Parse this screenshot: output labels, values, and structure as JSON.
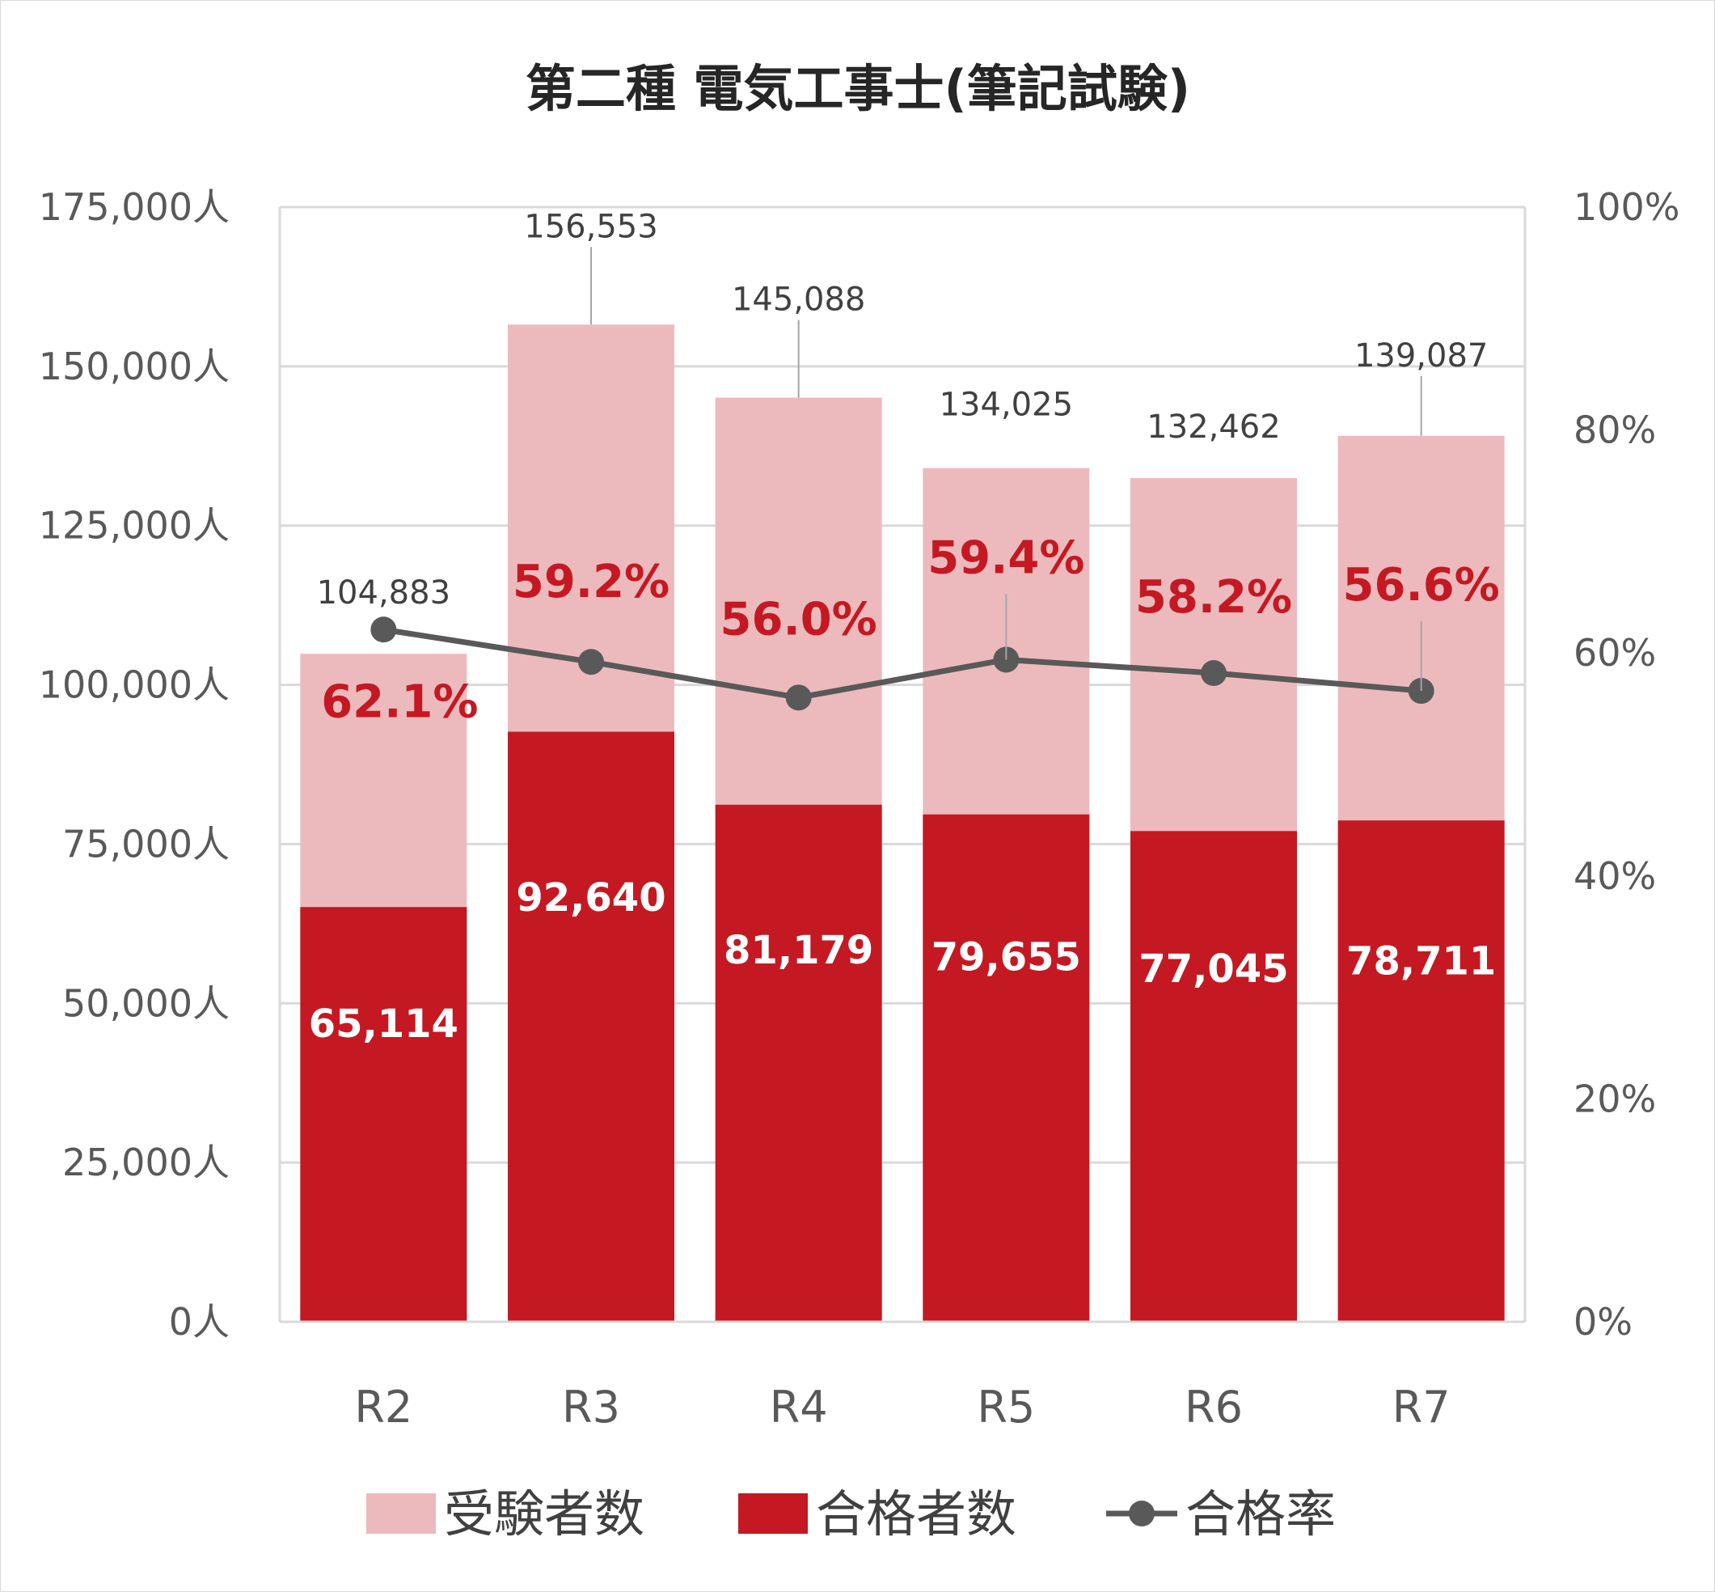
{
  "chart_data": {
    "type": "bar",
    "title": "第二種 電気工事士(筆記試験)",
    "categories": [
      "R2",
      "R3",
      "R4",
      "R5",
      "R6",
      "R7"
    ],
    "series": [
      {
        "name": "受験者数",
        "kind": "bar",
        "values": [
          104883,
          156553,
          145088,
          134025,
          132462,
          139087
        ],
        "labels": [
          "104,883",
          "156,553",
          "145,088",
          "134,025",
          "132,462",
          "139,087"
        ],
        "color": "#ecbabd"
      },
      {
        "name": "合格者数",
        "kind": "bar",
        "values": [
          65114,
          92640,
          81179,
          79655,
          77045,
          78711
        ],
        "labels": [
          "65,114",
          "92,640",
          "81,179",
          "79,655",
          "77,045",
          "78,711"
        ],
        "color": "#c41922"
      },
      {
        "name": "合格率",
        "kind": "line",
        "axis": "right",
        "values": [
          62.1,
          59.2,
          56.0,
          59.4,
          58.2,
          56.6
        ],
        "labels": [
          "62.1%",
          "59.2%",
          "56.0%",
          "59.4%",
          "58.2%",
          "56.6%"
        ],
        "color": "#595959"
      }
    ],
    "ylim": [
      0,
      175000
    ],
    "yticks": [
      "0人",
      "25,000人",
      "50,000人",
      "75,000人",
      "100,000人",
      "125,000人",
      "150,000人",
      "175,000人"
    ],
    "y2lim": [
      0,
      100
    ],
    "y2ticks": [
      "0%",
      "20%",
      "40%",
      "60%",
      "80%",
      "100%"
    ],
    "grid": true,
    "legend_position": "bottom"
  }
}
